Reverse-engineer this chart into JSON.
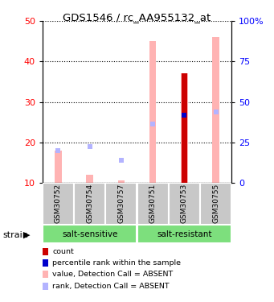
{
  "title": "GDS1546 / rc_AA955132_at",
  "samples": [
    "GSM30752",
    "GSM30754",
    "GSM30757",
    "GSM30751",
    "GSM30753",
    "GSM30755"
  ],
  "ylim_left": [
    10,
    50
  ],
  "ylim_right": [
    0,
    100
  ],
  "yticks_left": [
    10,
    20,
    30,
    40,
    50
  ],
  "ytick_labels_left": [
    "10",
    "20",
    "30",
    "40",
    "50"
  ],
  "yticks_right": [
    0,
    25,
    50,
    75,
    100
  ],
  "ytick_labels_right": [
    "0",
    "25",
    "50",
    "75",
    "100%"
  ],
  "value_absent": [
    18,
    12,
    10.5,
    45,
    37,
    46
  ],
  "rank_absent": [
    18.0,
    19.0,
    15.5,
    24.5,
    27.0,
    27.5
  ],
  "count_bar": [
    10,
    10,
    10,
    10,
    37,
    10
  ],
  "percentile_bar": [
    10,
    10,
    10,
    10,
    26.8,
    10
  ],
  "color_value_absent": "#ffb3b3",
  "color_rank_absent": "#b3b3ff",
  "color_count": "#cc0000",
  "color_percentile": "#0000cc",
  "color_group": "#7ddf7d",
  "color_sample_bg": "#c8c8c8",
  "legend_labels": [
    "count",
    "percentile rank within the sample",
    "value, Detection Call = ABSENT",
    "rank, Detection Call = ABSENT"
  ],
  "legend_colors": [
    "#cc0000",
    "#0000cc",
    "#ffb3b3",
    "#b3b3ff"
  ],
  "group_labels": [
    "salt-sensitive",
    "salt-resistant"
  ],
  "group_split": 3
}
